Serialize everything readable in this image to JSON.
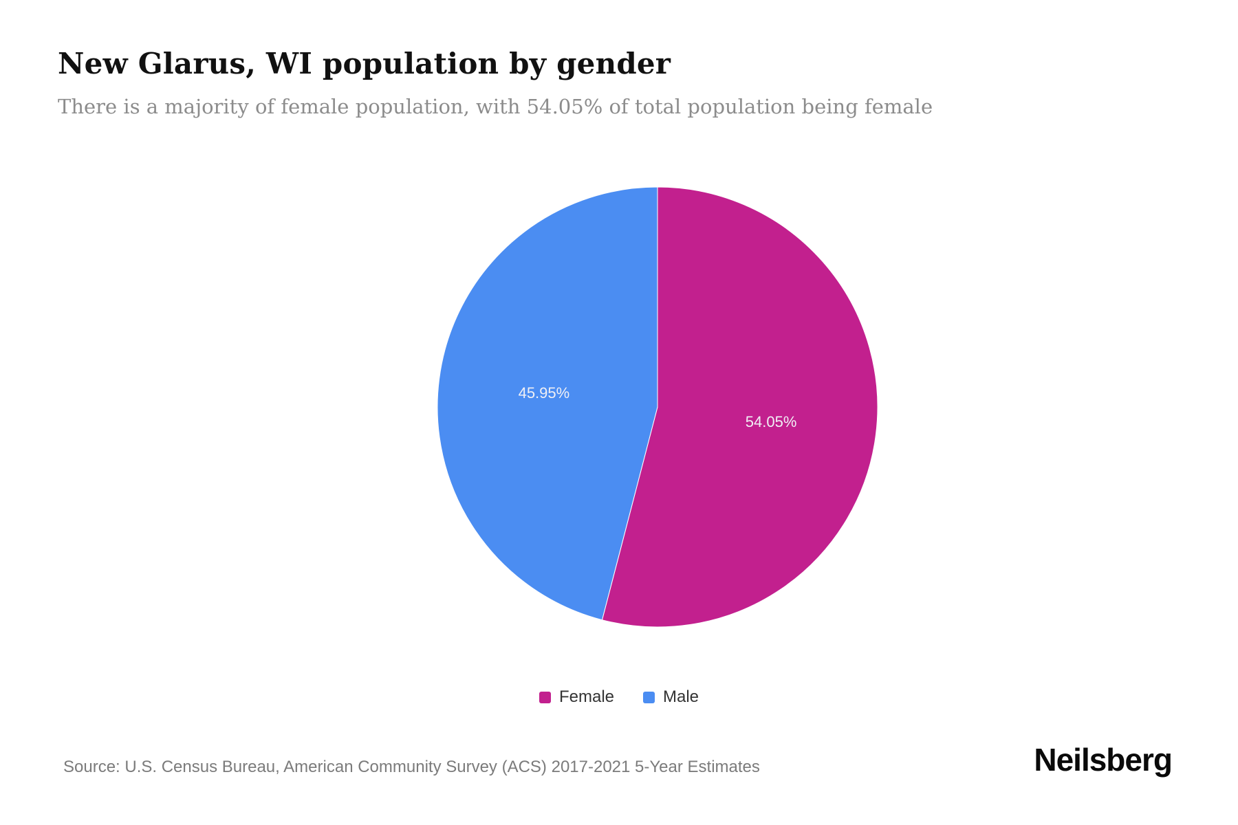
{
  "page": {
    "title": "New Glarus, WI population by gender",
    "subtitle": "There is a majority of female population, with 54.05% of total population being female",
    "source": "Source: U.S. Census Bureau, American Community Survey (ACS) 2017-2021 5-Year Estimates",
    "brand": "Neilsberg"
  },
  "chart_data": {
    "type": "pie",
    "title": "New Glarus, WI population by gender",
    "slices": [
      {
        "label": "Female",
        "value": 54.05,
        "display": "54.05%",
        "color": "#c2208e"
      },
      {
        "label": "Male",
        "value": 45.95,
        "display": "45.95%",
        "color": "#4b8df2"
      }
    ],
    "start_angle_deg": 0,
    "direction": "clockwise",
    "legend_position": "bottom",
    "slice_label_color": "#f0f0f5"
  }
}
